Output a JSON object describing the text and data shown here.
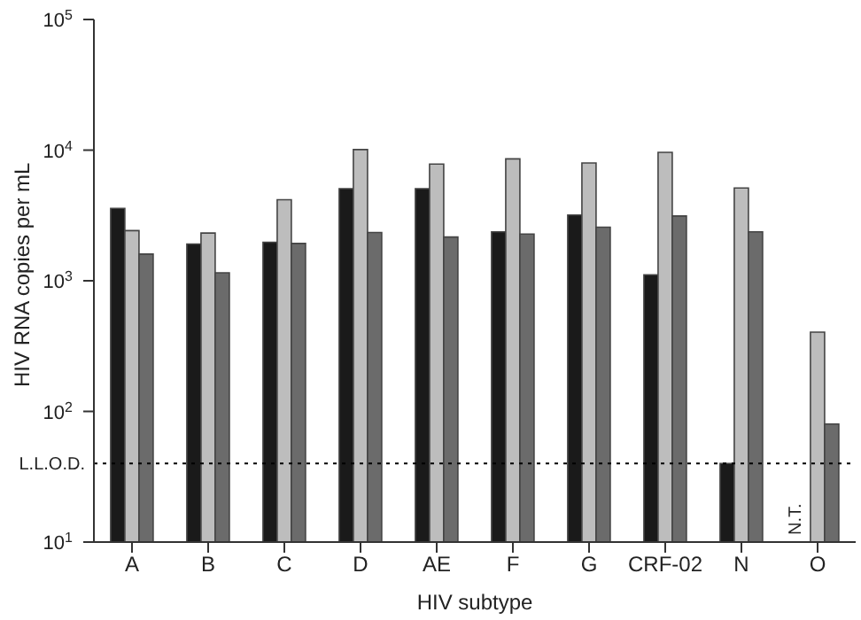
{
  "chart_data": {
    "type": "bar",
    "xlabel": "HIV subtype",
    "ylabel": "HIV RNA copies per mL",
    "categories": [
      "A",
      "B",
      "C",
      "D",
      "AE",
      "F",
      "G",
      "CRF-02",
      "N",
      "O"
    ],
    "series": [
      {
        "color": "#1a1a1a",
        "values": [
          3580,
          1910,
          1970,
          5070,
          5070,
          2370,
          3190,
          1110,
          40,
          null
        ]
      },
      {
        "color": "#bdbdbd",
        "values": [
          2420,
          2320,
          4170,
          10100,
          7820,
          8570,
          7980,
          9610,
          5130,
          404
        ]
      },
      {
        "color": "#6b6b6b",
        "values": [
          1600,
          1150,
          1930,
          2340,
          2160,
          2280,
          2570,
          3130,
          2370,
          80
        ]
      }
    ],
    "log": true,
    "ylim": [
      10,
      100000
    ],
    "yticks": [
      {
        "value": 10,
        "label": "10$^{1}$"
      },
      {
        "value": 100,
        "label": "10$^{2}$"
      },
      {
        "value": 1000,
        "label": "10$^{3}$"
      },
      {
        "value": 10000,
        "label": "10$^{4}$"
      },
      {
        "value": 100000,
        "label": "10$^{5}$"
      }
    ],
    "ref_lines": [
      {
        "axis": "y",
        "value": 40,
        "label": "L.L.O.D.",
        "color": "#000000",
        "line_style": "dotted"
      }
    ],
    "annotations": [
      {
        "text": "N.T.",
        "x": "O"
      }
    ],
    "grid": false,
    "legend": false
  }
}
